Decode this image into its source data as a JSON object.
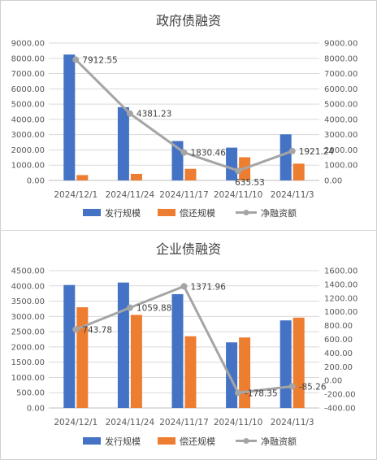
{
  "chart_data": [
    {
      "type": "bar",
      "title": "政府债融资",
      "categories": [
        "2024/12/1",
        "2024/11/24",
        "2024/11/17",
        "2024/11/10",
        "2024/11/3"
      ],
      "series": [
        {
          "name": "发行规模",
          "type": "bar",
          "axis": "left",
          "color": "#4472C4",
          "values": [
            8250,
            4800,
            2580,
            2150,
            3020
          ]
        },
        {
          "name": "偿还规模",
          "type": "bar",
          "axis": "left",
          "color": "#ED7D31",
          "values": [
            350,
            430,
            760,
            1520,
            1100
          ]
        },
        {
          "name": "净融资额",
          "type": "line",
          "axis": "right",
          "color": "#A5A5A5",
          "values": [
            7912.55,
            4381.23,
            1830.46,
            635.53,
            1921.24
          ]
        }
      ],
      "data_labels": [
        "7912.55",
        "4381.23",
        "1830.46",
        "635.53",
        "1921.24"
      ],
      "y_left": {
        "min": 0,
        "max": 9000,
        "step": 1000,
        "ticks": [
          "0.00",
          "1000.00",
          "2000.00",
          "3000.00",
          "4000.00",
          "5000.00",
          "6000.00",
          "7000.00",
          "8000.00",
          "9000.00"
        ]
      },
      "y_right": {
        "min": 0,
        "max": 9000,
        "step": 1000,
        "ticks": [
          "0.00",
          "1000.00",
          "2000.00",
          "3000.00",
          "4000.00",
          "5000.00",
          "6000.00",
          "7000.00",
          "8000.00",
          "9000.00"
        ]
      },
      "grid": true,
      "legend_position": "bottom"
    },
    {
      "type": "bar",
      "title": "企业债融资",
      "categories": [
        "2024/12/1",
        "2024/11/24",
        "2024/11/17",
        "2024/11/10",
        "2024/11/3"
      ],
      "series": [
        {
          "name": "发行规模",
          "type": "bar",
          "axis": "left",
          "color": "#4472C4",
          "values": [
            4030,
            4110,
            3730,
            2150,
            2870
          ]
        },
        {
          "name": "偿还规模",
          "type": "bar",
          "axis": "left",
          "color": "#ED7D31",
          "values": [
            3300,
            3050,
            2350,
            2310,
            2960
          ]
        },
        {
          "name": "净融资额",
          "type": "line",
          "axis": "right",
          "color": "#A5A5A5",
          "values": [
            743.78,
            1059.88,
            1371.96,
            -178.35,
            -85.26
          ]
        }
      ],
      "data_labels": [
        "743.78",
        "1059.88",
        "1371.96",
        "-178.35",
        "-85.26"
      ],
      "y_left": {
        "min": 0,
        "max": 4500,
        "step": 500,
        "ticks": [
          "0.00",
          "500.00",
          "1000.00",
          "1500.00",
          "2000.00",
          "2500.00",
          "3000.00",
          "3500.00",
          "4000.00",
          "4500.00"
        ]
      },
      "y_right": {
        "min": -400,
        "max": 1600,
        "step": 200,
        "ticks": [
          "-400.00",
          "-200.00",
          "0.00",
          "200.00",
          "400.00",
          "600.00",
          "800.00",
          "1000.00",
          "1200.00",
          "1400.00",
          "1600.00"
        ]
      },
      "grid": true,
      "legend_position": "bottom"
    }
  ]
}
